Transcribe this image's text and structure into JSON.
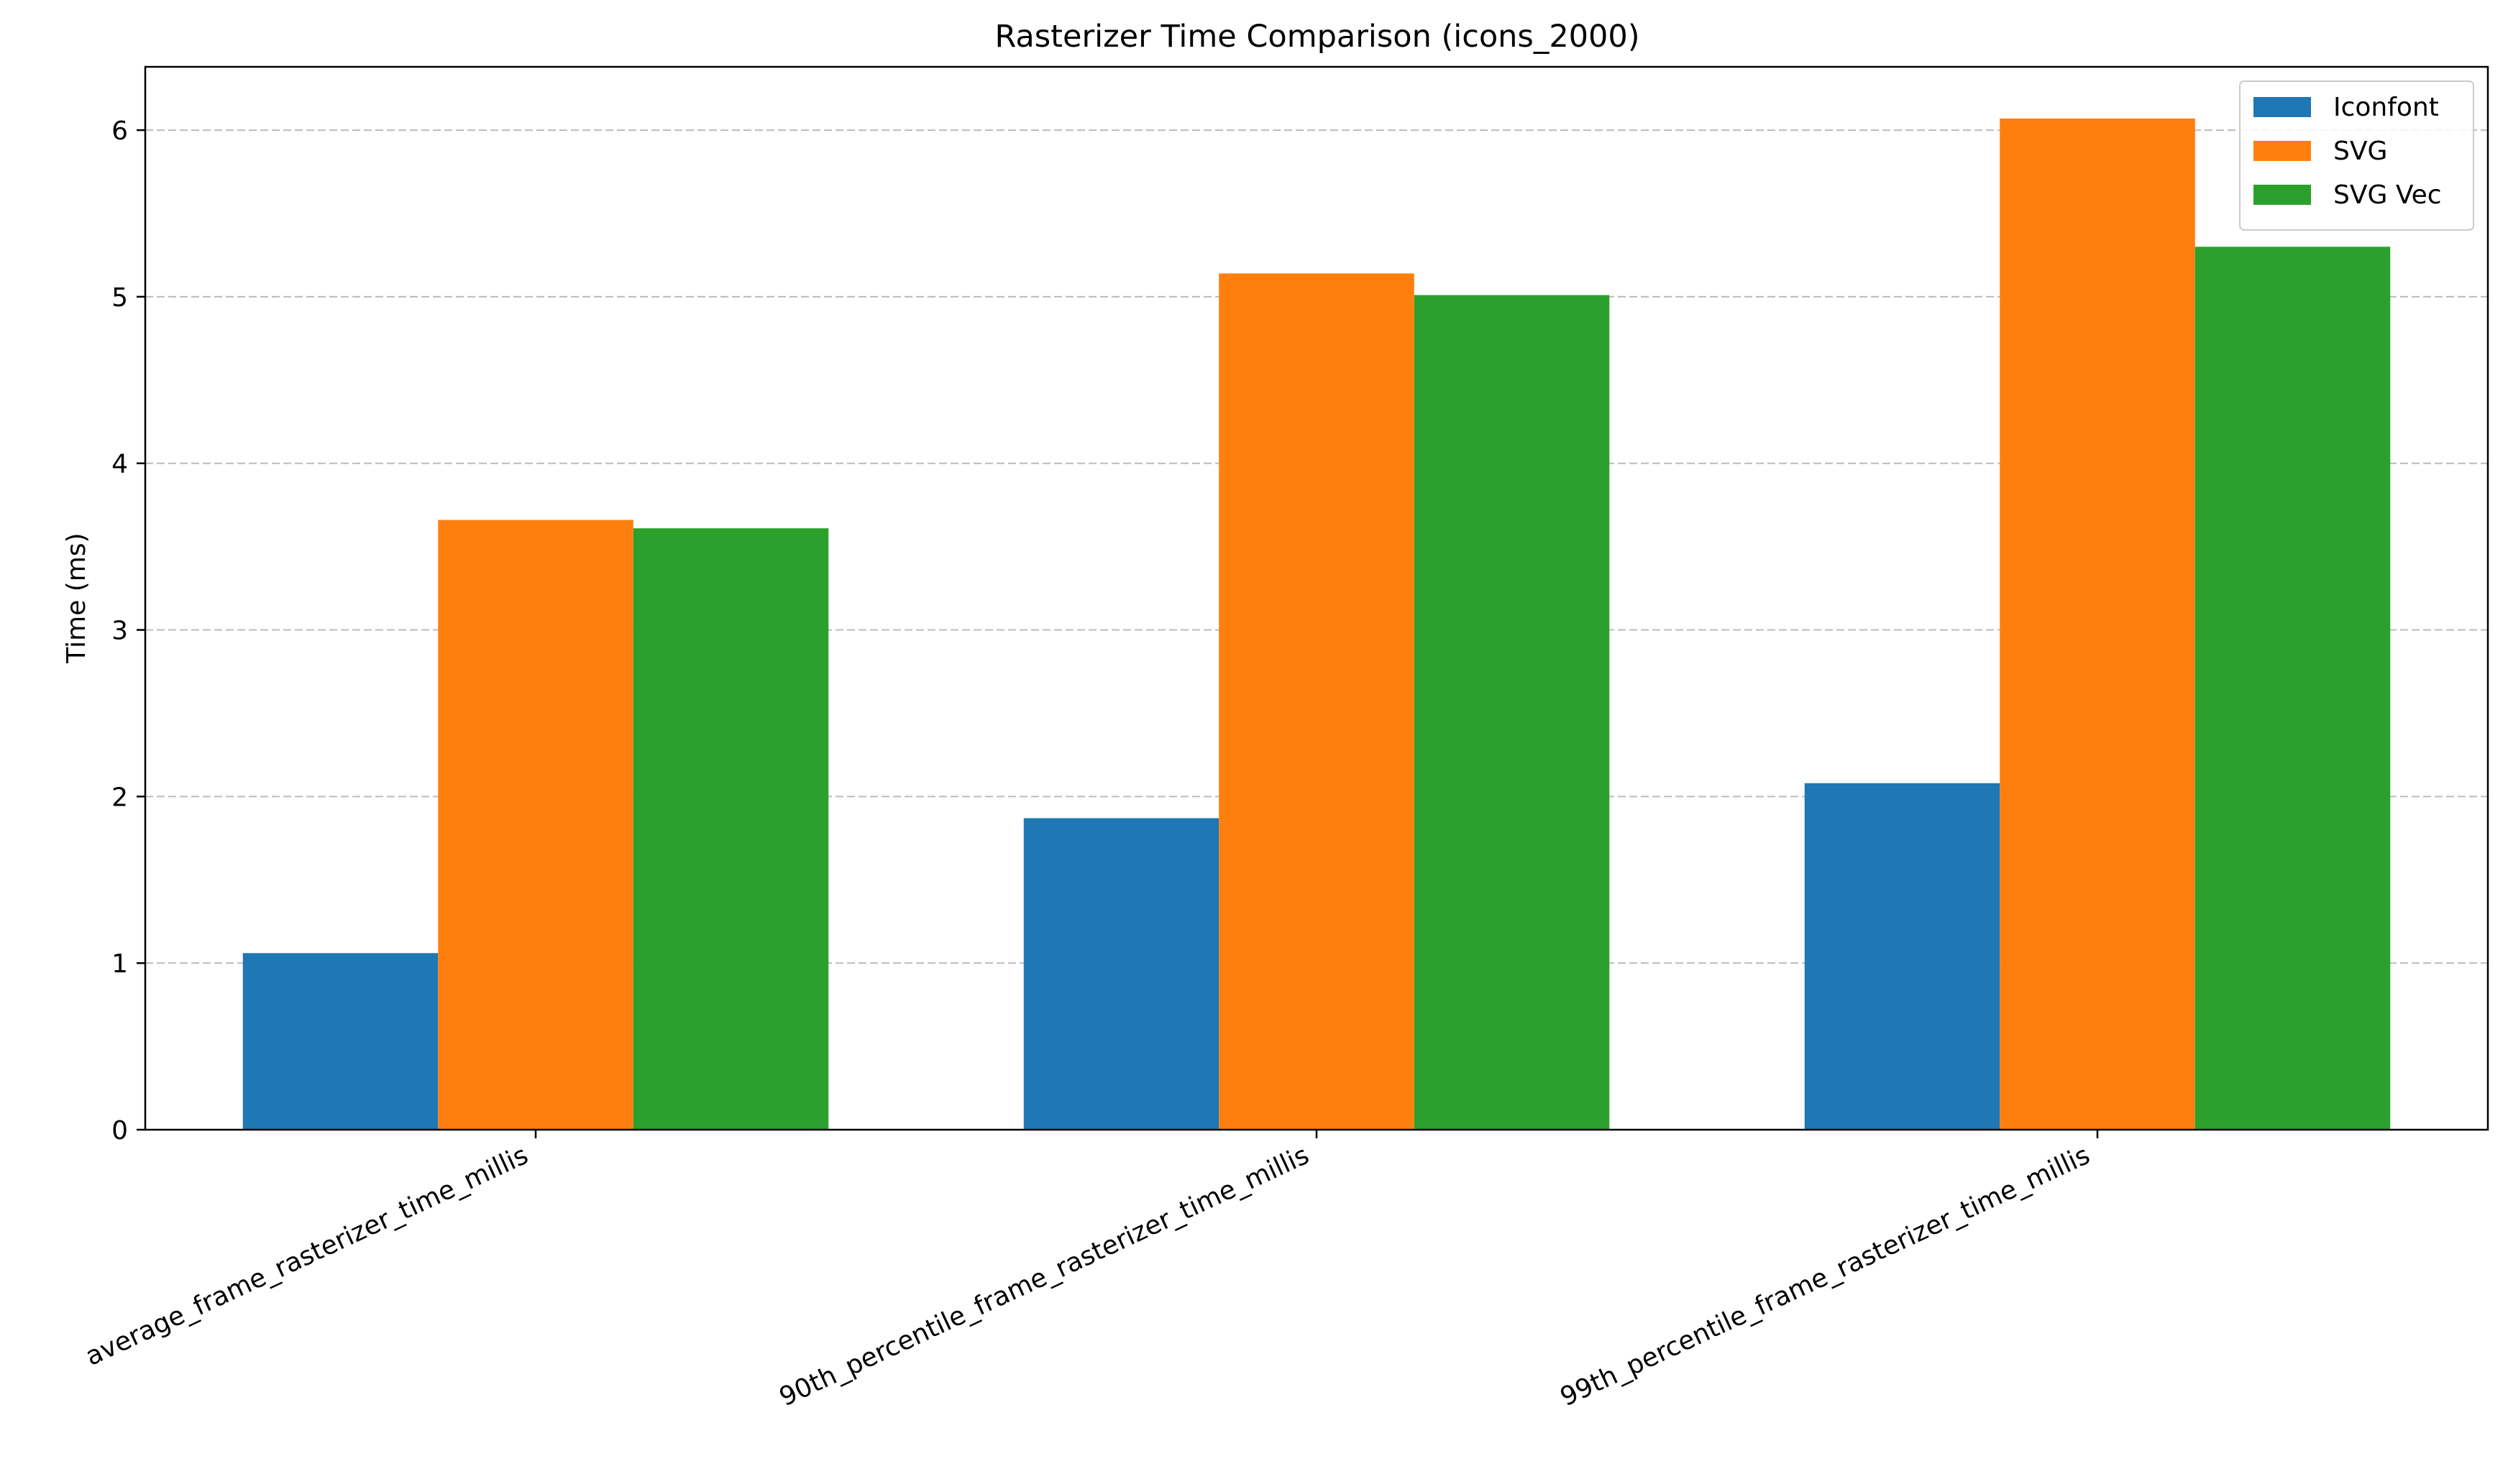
{
  "chart_data": {
    "type": "bar",
    "title": "Rasterizer Time Comparison (icons_2000)",
    "xlabel": "",
    "ylabel": "Time (ms)",
    "categories": [
      "average_frame_rasterizer_time_millis",
      "90th_percentile_frame_rasterizer_time_millis",
      "99th_percentile_frame_rasterizer_time_millis"
    ],
    "series": [
      {
        "name": "Iconfont",
        "color": "#1f77b4",
        "values": [
          1.06,
          1.87,
          2.08
        ]
      },
      {
        "name": "SVG",
        "color": "#ff7f0e",
        "values": [
          3.66,
          5.14,
          6.07
        ]
      },
      {
        "name": "SVG Vec",
        "color": "#2ca02c",
        "values": [
          3.61,
          5.01,
          5.3
        ]
      }
    ],
    "ylim": [
      0,
      6.38
    ],
    "yticks": [
      0,
      1,
      2,
      3,
      4,
      5,
      6
    ],
    "grid": "y-dashed",
    "legend_position": "top-right"
  }
}
